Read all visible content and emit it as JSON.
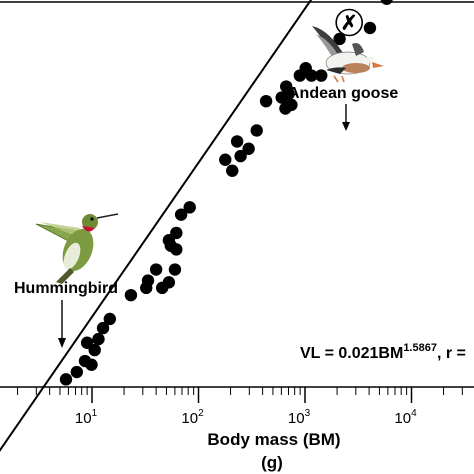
{
  "chart_data": {
    "type": "scatter",
    "xscale": "log",
    "yscale": "log",
    "xlim": [
      2,
      30000
    ],
    "xticks": [
      {
        "base": "10",
        "exp": "1",
        "value": 10
      },
      {
        "base": "10",
        "exp": "2",
        "value": 100
      },
      {
        "base": "10",
        "exp": "3",
        "value": 1000
      },
      {
        "base": "10",
        "exp": "4",
        "value": 10000
      }
    ],
    "xlabel_line1": "Body mass (BM)",
    "xlabel_line2": "(g)",
    "equation": {
      "base": "VL = 0.021BM",
      "exp": "1.5867",
      "tail": ", r ="
    },
    "fit": {
      "a": 0.021,
      "b": 1.5867
    },
    "points": [
      {
        "x": 5.7,
        "y": 3.52
      },
      {
        "x": 7.2,
        "y": 3.56
      },
      {
        "x": 8.6,
        "y": 3.62
      },
      {
        "x": 9.9,
        "y": 3.6
      },
      {
        "x": 10.6,
        "y": 3.68
      },
      {
        "x": 9.0,
        "y": 3.72
      },
      {
        "x": 11.5,
        "y": 3.74
      },
      {
        "x": 12.7,
        "y": 3.8
      },
      {
        "x": 14.7,
        "y": 3.85
      },
      {
        "x": 23.2,
        "y": 3.98
      },
      {
        "x": 32.3,
        "y": 4.02
      },
      {
        "x": 33.6,
        "y": 4.06
      },
      {
        "x": 40.0,
        "y": 4.12
      },
      {
        "x": 45.6,
        "y": 4.02
      },
      {
        "x": 52.7,
        "y": 4.05
      },
      {
        "x": 60.1,
        "y": 4.12
      },
      {
        "x": 55.0,
        "y": 4.25
      },
      {
        "x": 61.9,
        "y": 4.23
      },
      {
        "x": 52.7,
        "y": 4.28
      },
      {
        "x": 61.9,
        "y": 4.32
      },
      {
        "x": 68.7,
        "y": 4.42
      },
      {
        "x": 82.7,
        "y": 4.46
      },
      {
        "x": 178.4,
        "y": 4.72
      },
      {
        "x": 207.4,
        "y": 4.66
      },
      {
        "x": 230.5,
        "y": 4.82
      },
      {
        "x": 248.4,
        "y": 4.74
      },
      {
        "x": 295.7,
        "y": 4.78
      },
      {
        "x": 352.0,
        "y": 4.88
      },
      {
        "x": 431.1,
        "y": 5.04
      },
      {
        "x": 604.0,
        "y": 5.06
      },
      {
        "x": 655.0,
        "y": 5.0
      },
      {
        "x": 666.0,
        "y": 5.12
      },
      {
        "x": 702.4,
        "y": 5.08
      },
      {
        "x": 745.3,
        "y": 5.02
      },
      {
        "x": 894.3,
        "y": 5.18
      },
      {
        "x": 1015.4,
        "y": 5.22
      },
      {
        "x": 1149.4,
        "y": 5.18
      },
      {
        "x": 1421.2,
        "y": 5.18
      },
      {
        "x": 2112.0,
        "y": 5.38
      },
      {
        "x": 4073.0,
        "y": 5.44
      },
      {
        "x": 5854.0,
        "y": 5.6
      },
      {
        "x": 6993.0,
        "y": 5.65
      }
    ],
    "highlight": {
      "name": "Andean goose",
      "x": 2600,
      "y": 5.47
    },
    "annotations": [
      {
        "text": "Hummingbird",
        "x": 5.7
      },
      {
        "text": "Andean goose",
        "x": 2600
      }
    ]
  }
}
